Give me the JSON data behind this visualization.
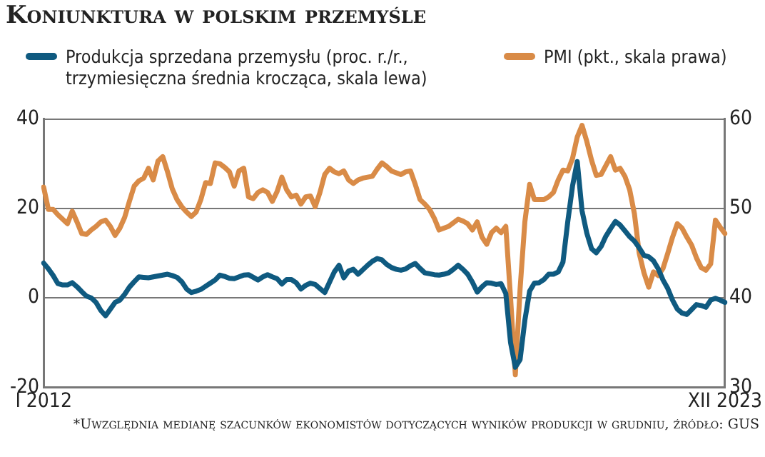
{
  "chart_data": {
    "type": "line",
    "title": "Koniunktura w polskim przemyśle",
    "legend": "top",
    "grid": "y",
    "marker": "none",
    "line_style": "solid",
    "categories": [
      "I 2012",
      null,
      null,
      null,
      null,
      null,
      null,
      null,
      null,
      null,
      null,
      null,
      null,
      null,
      null,
      null,
      null,
      null,
      null,
      null,
      null,
      null,
      null,
      null,
      null,
      null,
      null,
      null,
      null,
      null,
      null,
      null,
      null,
      null,
      null,
      null,
      null,
      null,
      null,
      null,
      null,
      null,
      null,
      null,
      null,
      null,
      null,
      null,
      null,
      null,
      null,
      null,
      null,
      null,
      null,
      null,
      null,
      null,
      null,
      null,
      null,
      null,
      null,
      null,
      null,
      null,
      null,
      null,
      null,
      null,
      null,
      null,
      null,
      null,
      null,
      null,
      null,
      null,
      null,
      null,
      null,
      null,
      null,
      null,
      null,
      null,
      null,
      null,
      null,
      null,
      null,
      null,
      null,
      null,
      null,
      null,
      null,
      null,
      null,
      null,
      null,
      null,
      null,
      null,
      null,
      null,
      null,
      null,
      null,
      null,
      null,
      null,
      null,
      null,
      null,
      null,
      null,
      null,
      null,
      null,
      null,
      null,
      null,
      null,
      null,
      null,
      null,
      null,
      null,
      null,
      null,
      null,
      null,
      null,
      null,
      null,
      null,
      null,
      null,
      null,
      null,
      null,
      null,
      "XII 2023"
    ],
    "ylim": [
      -20,
      40
    ],
    "yticks": [
      -20,
      0,
      20,
      40
    ],
    "y2lim": [
      30,
      60
    ],
    "y2ticks": [
      30,
      40,
      50,
      60
    ],
    "series": [
      {
        "name": "Produkcja sprzedana przemysłu (proc. r./r., trzymiesięczna średnia krocząca, skala lewa)",
        "color": "#0f5a80",
        "values": [
          7.8,
          6.5,
          5.0,
          3.2,
          2.9,
          2.9,
          3.4,
          2.5,
          1.4,
          0.4,
          0.0,
          -1.0,
          -2.8,
          -4.0,
          -2.5,
          -1.0,
          -0.5,
          0.8,
          2.4,
          3.6,
          4.7,
          4.6,
          4.5,
          4.7,
          4.9,
          5.1,
          5.3,
          5.0,
          4.6,
          3.6,
          2.0,
          1.2,
          1.5,
          1.9,
          2.6,
          3.3,
          4.0,
          5.1,
          4.8,
          4.4,
          4.3,
          4.7,
          5.1,
          5.2,
          4.6,
          4.0,
          4.7,
          5.2,
          4.7,
          4.3,
          3.1,
          4.1,
          4.1,
          3.4,
          2.0,
          2.8,
          3.3,
          3.0,
          2.1,
          1.2,
          3.5,
          5.8,
          7.3,
          4.5,
          6.0,
          6.4,
          5.3,
          6.3,
          7.3,
          8.2,
          8.8,
          8.5,
          7.5,
          6.8,
          6.4,
          6.2,
          6.5,
          7.2,
          7.7,
          6.6,
          5.6,
          5.4,
          5.2,
          5.1,
          5.3,
          5.6,
          6.4,
          7.3,
          6.4,
          5.3,
          3.5,
          1.3,
          2.5,
          3.4,
          3.3,
          3.0,
          3.2,
          1.0,
          -10.0,
          -15.5,
          -13.8,
          -5.0,
          1.5,
          3.3,
          3.4,
          4.1,
          5.3,
          5.3,
          5.8,
          8.0,
          17.0,
          25.0,
          30.5,
          19.5,
          14.5,
          11.0,
          10.1,
          11.5,
          13.8,
          15.5,
          17.1,
          16.3,
          15.0,
          13.7,
          12.7,
          11.2,
          9.5,
          9.2,
          8.3,
          6.5,
          4.0,
          2.1,
          -0.5,
          -2.5,
          -3.4,
          -3.7,
          -2.6,
          -1.5,
          -1.7,
          -2.1,
          -0.5,
          -0.1,
          -0.5,
          -1.0
        ]
      },
      {
        "name": "PMI (pkt., skala prawa)",
        "color": "#d98b47",
        "axis": "y2",
        "values": [
          52.4,
          49.9,
          49.9,
          49.3,
          48.8,
          48.3,
          49.7,
          48.5,
          47.2,
          47.1,
          47.6,
          48.0,
          48.5,
          48.7,
          48.0,
          47.0,
          47.8,
          49.0,
          50.8,
          52.5,
          53.1,
          53.4,
          54.5,
          53.2,
          55.3,
          55.8,
          54.1,
          52.2,
          51.0,
          50.2,
          49.6,
          49.1,
          49.6,
          51.0,
          52.9,
          52.8,
          55.1,
          55.0,
          54.6,
          54.1,
          52.5,
          54.2,
          54.5,
          51.3,
          51.1,
          51.8,
          52.1,
          51.8,
          50.8,
          51.9,
          53.5,
          52.1,
          51.3,
          51.5,
          50.5,
          51.3,
          51.4,
          50.2,
          51.8,
          53.8,
          54.5,
          54.1,
          53.9,
          54.2,
          53.2,
          52.8,
          53.2,
          53.4,
          53.5,
          53.6,
          54.4,
          55.1,
          54.7,
          54.2,
          54.0,
          53.8,
          54.1,
          54.2,
          52.7,
          51.0,
          50.5,
          49.9,
          48.9,
          47.6,
          47.8,
          48.0,
          48.4,
          48.8,
          48.6,
          48.3,
          47.6,
          48.5,
          46.8,
          46.0,
          47.3,
          47.8,
          47.3,
          48.0,
          40.0,
          31.4,
          41.0,
          48.5,
          52.7,
          51.0,
          51.0,
          51.0,
          51.3,
          51.8,
          53.2,
          54.3,
          54.2,
          55.6,
          58.0,
          59.3,
          57.5,
          55.4,
          53.7,
          53.8,
          54.8,
          55.8,
          54.3,
          54.5,
          53.6,
          52.1,
          49.4,
          45.0,
          42.8,
          41.2,
          42.9,
          42.5,
          43.3,
          45.0,
          46.8,
          48.3,
          47.8,
          46.8,
          45.9,
          44.5,
          43.4,
          43.1,
          43.8,
          48.7,
          47.9,
          47.2
        ]
      }
    ],
    "annotations": [
      "*Uwzględnia medianę szacunków ekonomistów dotyczących wyników produkcji w grudniu, źródło: GUS"
    ]
  }
}
